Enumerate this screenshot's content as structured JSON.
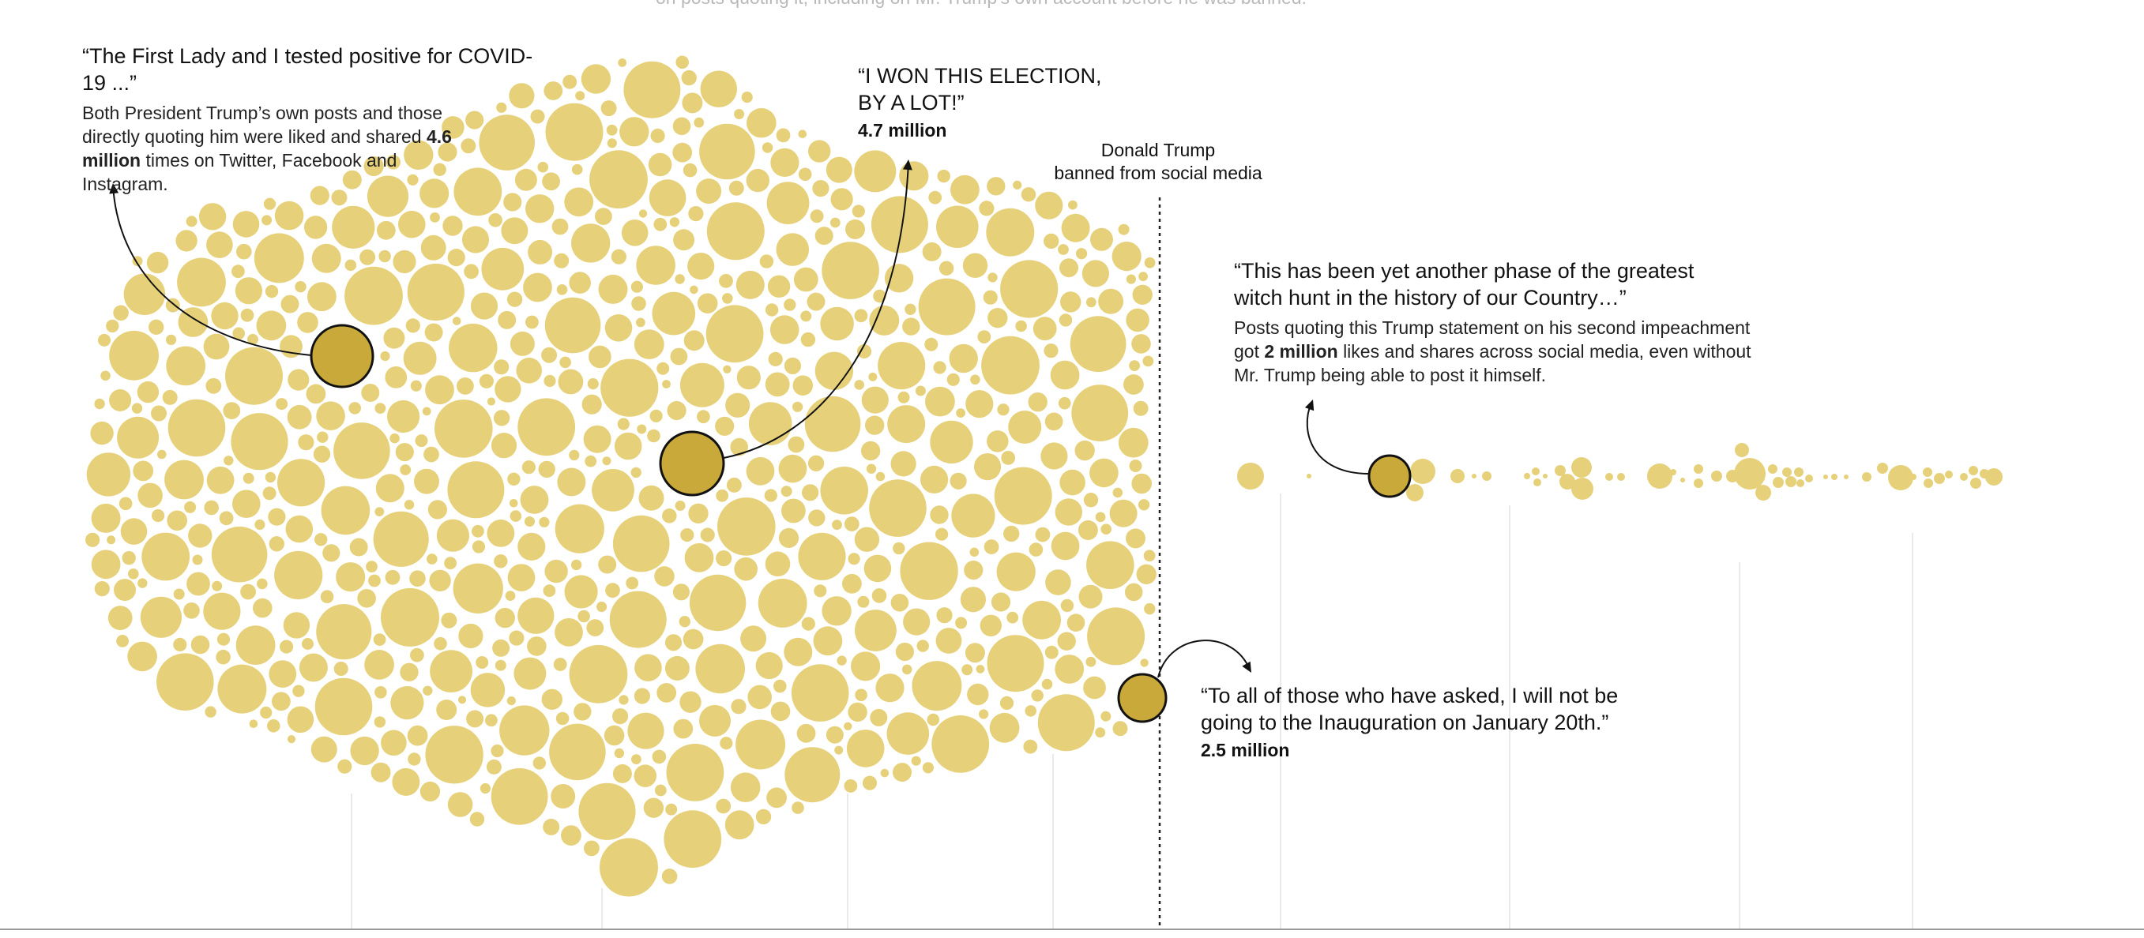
{
  "top_text": "on posts quoting it, including on Mr. Trump's own account before he was banned.",
  "annotations": {
    "covid": {
      "quote": "“The First Lady and I tested positive for COVID-19 ...”",
      "desc_pre": "Both President Trump’s own posts and those directly quoting him were liked and shared",
      "desc_bold": "4.6 million",
      "desc_post": "times on Twitter, Facebook and Instagram."
    },
    "election": {
      "quote_line1": "“I WON THIS ELECTION,",
      "quote_line2": "BY A LOT!”",
      "value": "4.7 million"
    },
    "ban": {
      "line1": "Donald Trump",
      "line2": "banned from social media"
    },
    "witch": {
      "quote_line1": "“This has been yet another phase of the greatest",
      "quote_line2": "witch hunt in the history of our Country…”",
      "desc_line1": "Posts quoting this Trump statement on his second impeachment",
      "desc_pre": "got",
      "desc_bold": "2 million",
      "desc_post": "likes and shares across social media, even without",
      "desc_line3": "Mr. Trump being able to post it himself."
    },
    "inauguration": {
      "quote_line1": "“To all of those who have asked, I will not be",
      "quote_line2": "going to the Inauguration on January 20th.”",
      "value": "2.5 million"
    }
  },
  "colors": {
    "bubble": "#e6d17a",
    "highlight": "#c9a93a",
    "outline": "#121212",
    "gridline": "#e4e4e4",
    "divider": "#222222"
  },
  "chart_data": {
    "type": "scatter",
    "encoding": "Each bubble is a post by or quoting Donald Trump; bubble area is proportional to the post's likes and shares. Posts are arranged in time order, left to right.",
    "ban_marker": "Donald Trump banned from social media",
    "highlighted_posts": [
      {
        "id": "covid",
        "value_millions": 4.6,
        "period": "before ban"
      },
      {
        "id": "election",
        "value_millions": 4.7,
        "period": "before ban"
      },
      {
        "id": "inauguration",
        "value_millions": 2.5,
        "period": "before ban"
      },
      {
        "id": "witch",
        "value_millions": 2.0,
        "period": "after ban"
      }
    ],
    "grid": true,
    "legend": "none"
  }
}
